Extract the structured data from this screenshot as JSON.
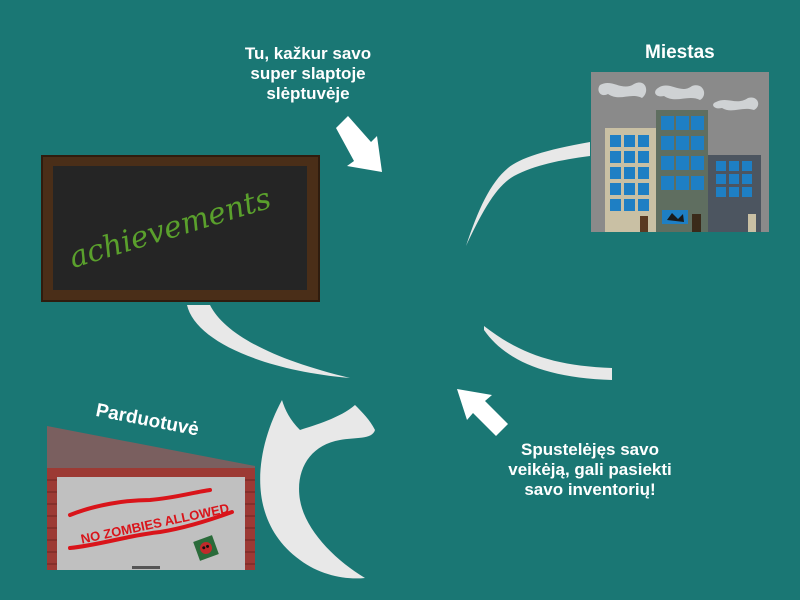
{
  "hints": {
    "hideout": "Tu, kažkur savo super slaptoje slėptuvėje",
    "inventory": "Spustelėjęs savo veikėją, gali pasiekti savo inventorių!"
  },
  "places": {
    "city": "Miestas",
    "shop": "Parduotuvė"
  },
  "achievements_board": {
    "text": "achievements"
  },
  "shop_sign": {
    "text": "NO ZOMBIES ALLOWED"
  },
  "colors": {
    "background": "#1a7774",
    "path": "#e8e8e8",
    "board_frame": "#4a2e18",
    "board_surface": "#252525",
    "chalk_green": "#5aa02c",
    "sign_red": "#d9141a",
    "label_white": "#ffffff"
  },
  "icons": {
    "arrow_hideout": "arrow-down-right-icon",
    "arrow_inventory": "arrow-up-left-icon"
  }
}
